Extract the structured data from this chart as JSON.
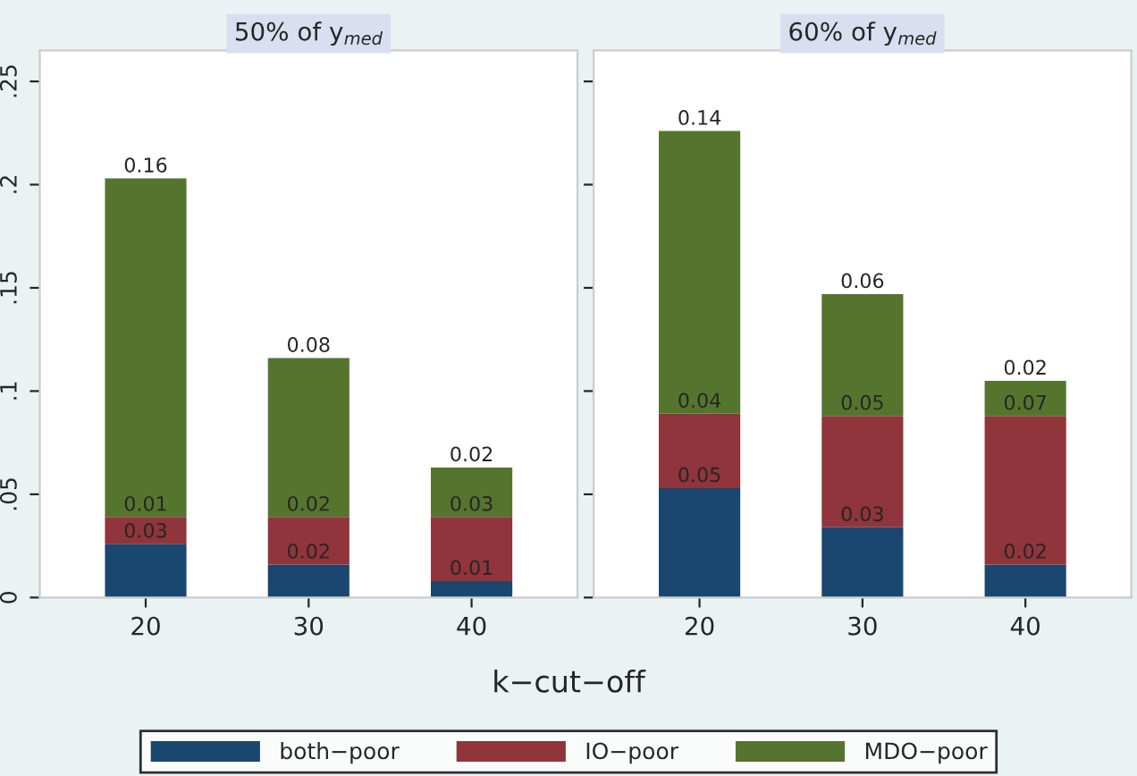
{
  "chart_data": [
    {
      "type": "bar",
      "title": "50% of y$_{med}$",
      "xlabel": "k−cut−off",
      "categories": [
        "20",
        "30",
        "40"
      ],
      "stacked": true,
      "legend": "bottom",
      "grid": false,
      "ylim": [
        0,
        0.265
      ],
      "yticks": [
        0,
        {
          "value": 0.05,
          "label": ".05"
        },
        {
          "value": 0.1,
          "label": ".1"
        },
        {
          "value": 0.15,
          "label": ".15"
        },
        {
          "value": 0.2,
          "label": ".2"
        },
        {
          "value": 0.25,
          "label": ".25"
        }
      ],
      "series": [
        {
          "name": "both−poor",
          "color": "#1a476f",
          "values": [
            0.026,
            0.016,
            0.008
          ],
          "value_labels": [
            "0.03",
            "0.02",
            "0.01"
          ]
        },
        {
          "name": "IO−poor",
          "color": "#90353b",
          "values": [
            0.013,
            0.023,
            0.031
          ],
          "value_labels": [
            "0.01",
            "0.02",
            "0.03"
          ]
        },
        {
          "name": "MDO−poor",
          "color": "#55752f",
          "values": [
            0.164,
            0.077,
            0.024
          ],
          "value_labels": [
            "0.16",
            "0.08",
            "0.02"
          ]
        }
      ]
    },
    {
      "type": "bar",
      "title": "60% of y$_{med}$",
      "categories": [
        "20",
        "30",
        "40"
      ],
      "stacked": true,
      "grid": false,
      "tick_labels": "x",
      "ylim": [
        0,
        0.265
      ],
      "yticks": [
        {
          "value": 0,
          "label": null
        },
        {
          "value": 0.05,
          "label": null
        },
        {
          "value": 0.1,
          "label": null
        },
        {
          "value": 0.15,
          "label": null
        },
        {
          "value": 0.2,
          "label": null
        },
        {
          "value": 0.25,
          "label": null
        }
      ],
      "series": [
        {
          "color": "#1a476f",
          "values": [
            0.053,
            0.034,
            0.016
          ],
          "value_labels": [
            "0.05",
            "0.03",
            "0.02"
          ]
        },
        {
          "color": "#90353b",
          "values": [
            0.036,
            0.054,
            0.072
          ],
          "value_labels": [
            "0.04",
            "0.05",
            "0.07"
          ]
        },
        {
          "color": "#55752f",
          "values": [
            0.137,
            0.059,
            0.017
          ],
          "value_labels": [
            "0.14",
            "0.06",
            "0.02"
          ]
        }
      ]
    }
  ]
}
